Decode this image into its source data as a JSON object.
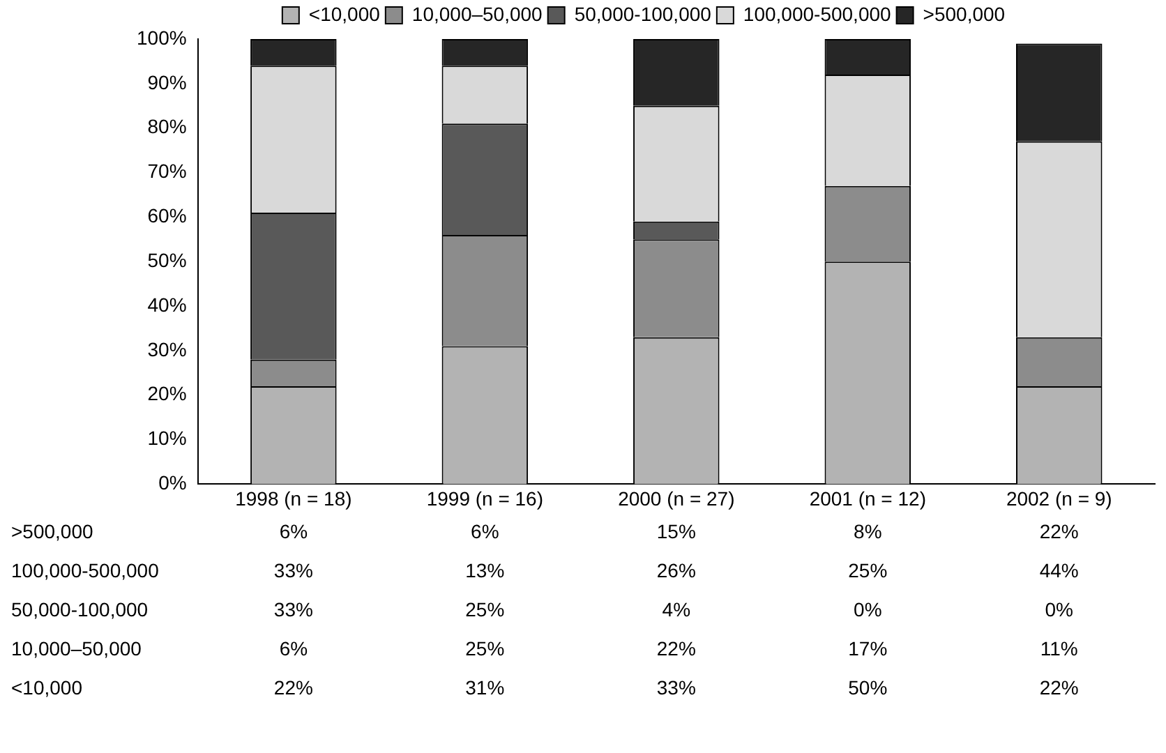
{
  "chart_data": {
    "type": "bar",
    "stacked": true,
    "categories": [
      "1998 (n = 18)",
      "1999 (n = 16)",
      "2000 (n = 27)",
      "2001 (n = 12)",
      "2002 (n = 9)"
    ],
    "series": [
      {
        "name": "<10,000",
        "color": "#b3b3b3",
        "values": [
          22,
          31,
          33,
          50,
          22
        ],
        "value_labels": [
          "22%",
          "31%",
          "33%",
          "50%",
          "22%"
        ]
      },
      {
        "name": "10,000–50,000",
        "color": "#8c8c8c",
        "values": [
          6,
          25,
          22,
          17,
          11
        ],
        "value_labels": [
          "6%",
          "25%",
          "22%",
          "17%",
          "11%"
        ]
      },
      {
        "name": "50,000-100,000",
        "color": "#595959",
        "values": [
          33,
          25,
          4,
          0,
          0
        ],
        "value_labels": [
          "33%",
          "25%",
          "4%",
          "0%",
          "0%"
        ]
      },
      {
        "name": "100,000-500,000",
        "color": "#d9d9d9",
        "values": [
          33,
          13,
          26,
          25,
          44
        ],
        "value_labels": [
          "33%",
          "13%",
          "26%",
          "25%",
          "44%"
        ]
      },
      {
        "name": ">500,000",
        "color": "#262626",
        "values": [
          6,
          6,
          15,
          8,
          22
        ],
        "value_labels": [
          "6%",
          "6%",
          "15%",
          "8%",
          "22%"
        ]
      }
    ],
    "ylim": [
      0,
      100
    ],
    "yticks": [
      {
        "value": 0,
        "label": "0%"
      },
      {
        "value": 10,
        "label": "10%"
      },
      {
        "value": 20,
        "label": "20%"
      },
      {
        "value": 30,
        "label": "30%"
      },
      {
        "value": 40,
        "label": "40%"
      },
      {
        "value": 50,
        "label": "50%"
      },
      {
        "value": 60,
        "label": "60%"
      },
      {
        "value": 70,
        "label": "70%"
      },
      {
        "value": 80,
        "label": "80%"
      },
      {
        "value": 90,
        "label": "90%"
      },
      {
        "value": 100,
        "label": "100%"
      }
    ],
    "grid": false,
    "legend": "top"
  }
}
